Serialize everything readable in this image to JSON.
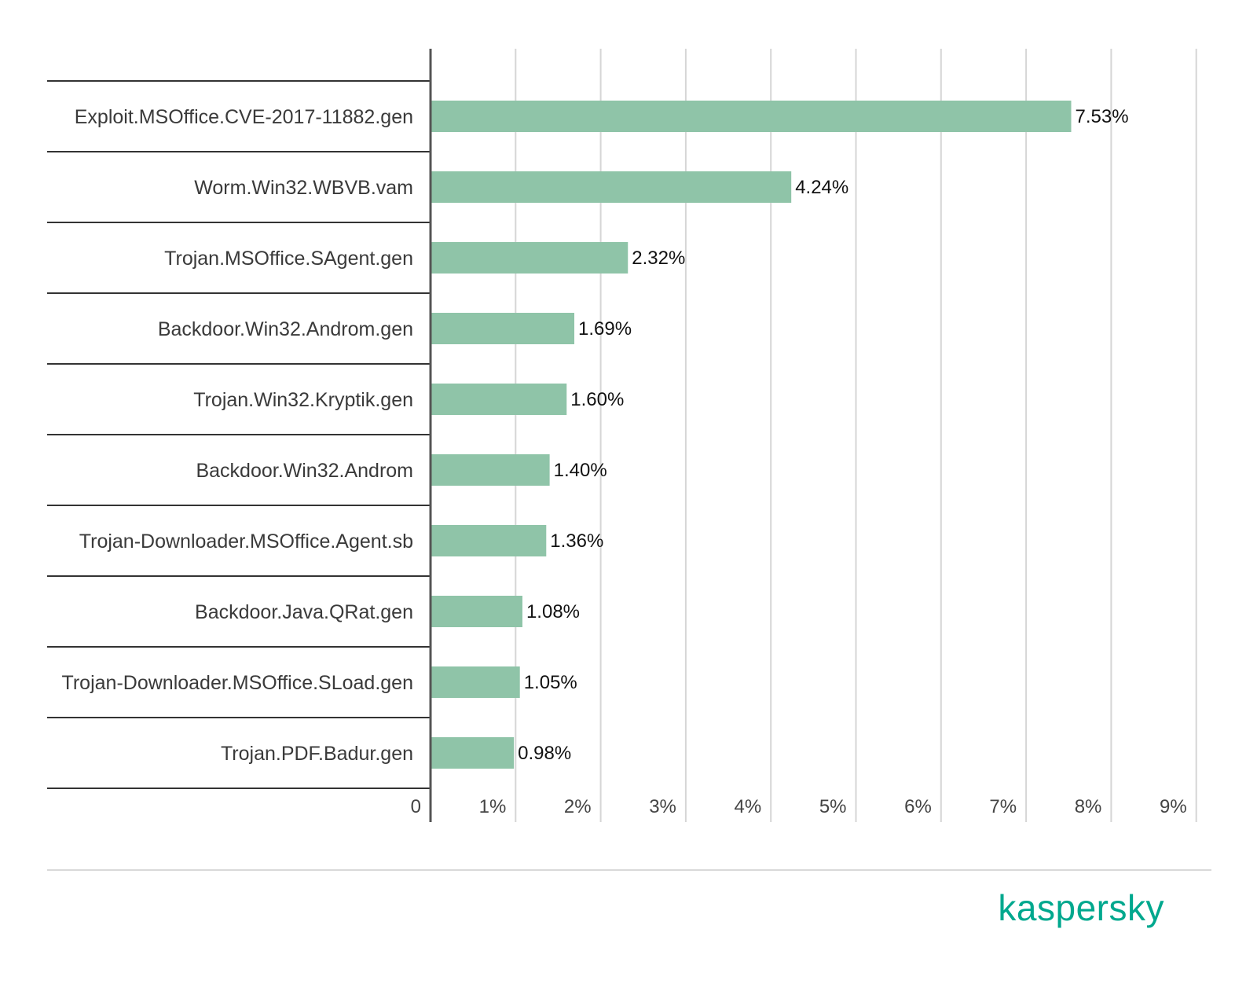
{
  "chart_data": {
    "type": "bar",
    "orientation": "horizontal",
    "categories": [
      "Exploit.MSOffice.CVE-2017-11882.gen",
      "Worm.Win32.WBVB.vam",
      "Trojan.MSOffice.SAgent.gen",
      "Backdoor.Win32.Androm.gen",
      "Trojan.Win32.Kryptik.gen",
      "Backdoor.Win32.Androm",
      "Trojan-Downloader.MSOffice.Agent.sb",
      "Backdoor.Java.QRat.gen",
      "Trojan-Downloader.MSOffice.SLoad.gen",
      "Trojan.PDF.Badur.gen"
    ],
    "values": [
      7.53,
      4.24,
      2.32,
      1.69,
      1.6,
      1.4,
      1.36,
      1.08,
      1.05,
      0.98
    ],
    "value_labels": [
      "7.53%",
      "4.24%",
      "2.32%",
      "1.69%",
      "1.60%",
      "1.40%",
      "1.36%",
      "1.08%",
      "1.05%",
      "0.98%"
    ],
    "x_ticks": [
      "0",
      "1%",
      "2%",
      "3%",
      "4%",
      "5%",
      "6%",
      "7%",
      "8%",
      "9%"
    ],
    "xlim": [
      0,
      9
    ],
    "grid": true,
    "legend": "none",
    "bar_color": "#8fc4a8",
    "title": "",
    "xlabel": "",
    "ylabel": ""
  },
  "brand": {
    "name": "kaspersky",
    "color": "#00a88e"
  }
}
